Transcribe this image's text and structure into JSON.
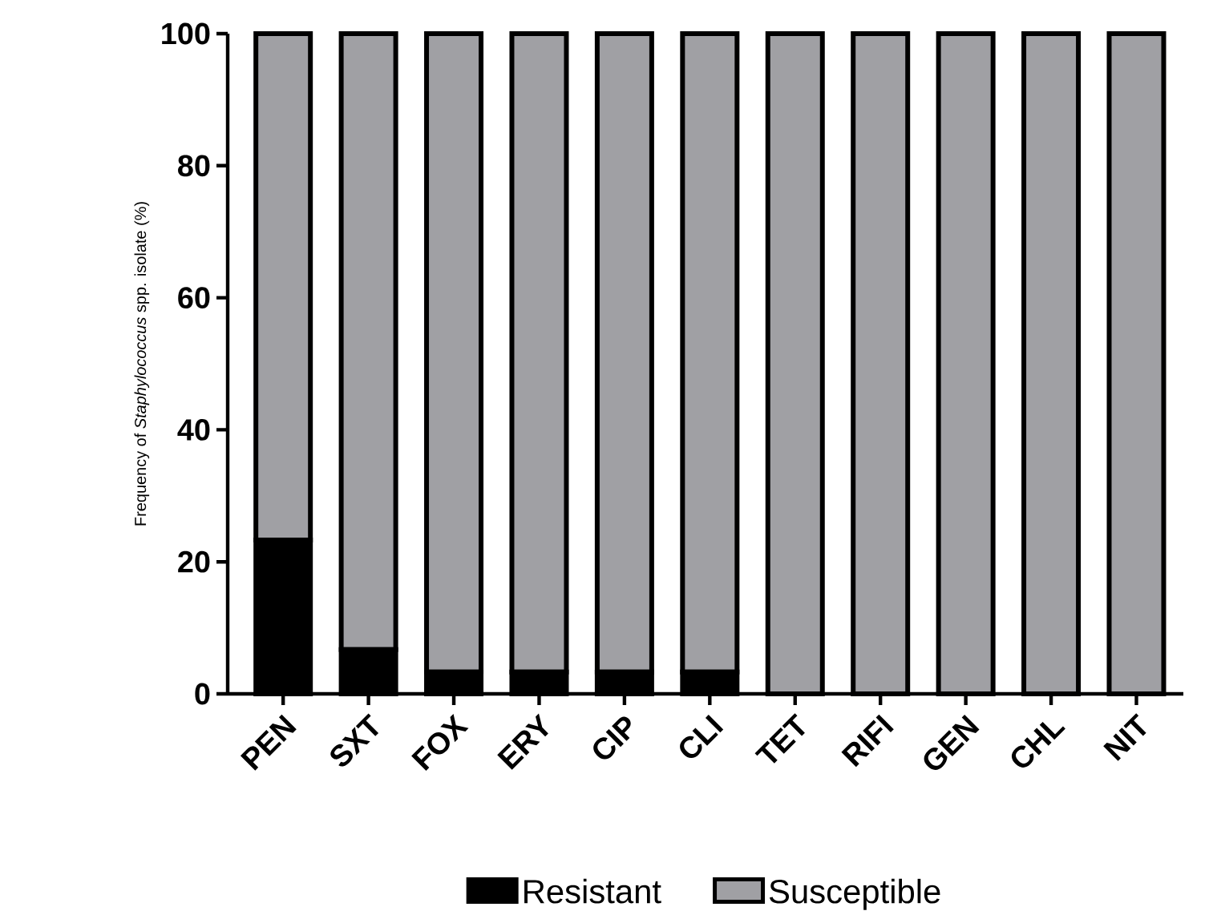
{
  "chart_data": {
    "type": "bar",
    "stacked": true,
    "ylabel": "Frequency of *Staphylococcus* spp. isolate (%)",
    "categories": [
      "PEN",
      "SXT",
      "FOX",
      "ERY",
      "CIP",
      "CLI",
      "TET",
      "RIFI",
      "GEN",
      "CHL",
      "NIT"
    ],
    "series": [
      {
        "name": "Resistant",
        "color": "#000000",
        "values": [
          23.3,
          6.7,
          3.3,
          3.3,
          3.3,
          3.3,
          0,
          0,
          0,
          0,
          0
        ]
      },
      {
        "name": "Susceptible",
        "color": "#a0a0a4",
        "values": [
          76.7,
          93.3,
          96.7,
          96.7,
          96.7,
          96.7,
          100,
          100,
          100,
          100,
          100
        ]
      }
    ],
    "ylim": [
      0,
      100
    ],
    "yticks": [
      0,
      20,
      40,
      60,
      80,
      100
    ],
    "grid": false,
    "legend": "bottom"
  }
}
